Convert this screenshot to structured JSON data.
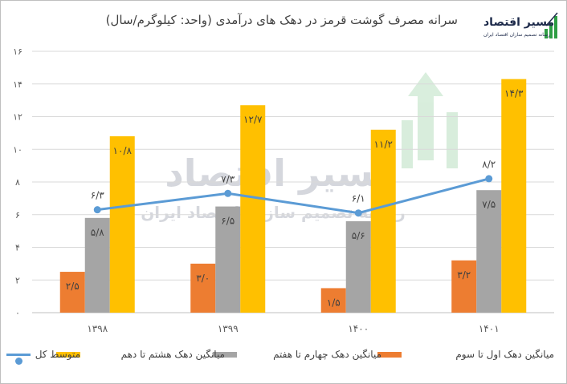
{
  "chart_data": {
    "type": "bar",
    "title": "سرانه مصرف گوشت قرمز در دهک های درآمدی (واحد: کیلوگرم/سال)",
    "categories": [
      "۱۳۹۸",
      "۱۳۹۹",
      "۱۴۰۰",
      "۱۴۰۱"
    ],
    "ylim": [
      0,
      16
    ],
    "yticks": [
      0,
      2,
      4,
      6,
      8,
      10,
      12,
      14,
      16
    ],
    "ytick_labels": [
      "۰",
      "۲",
      "۴",
      "۶",
      "۸",
      "۱۰",
      "۱۲",
      "۱۴",
      "۱۶"
    ],
    "grid": true,
    "legend_position": "bottom",
    "series": [
      {
        "name": "میانگین دهک اول تا سوم",
        "type": "bar",
        "color": "#ed7d31",
        "values": [
          2.5,
          3.0,
          1.5,
          3.2
        ],
        "labels": [
          "۲/۵",
          "۳/۰",
          "۱/۵",
          "۳/۲"
        ]
      },
      {
        "name": "میانگین دهک چهارم تا هفتم",
        "type": "bar",
        "color": "#a5a5a5",
        "values": [
          5.8,
          6.5,
          5.6,
          7.5
        ],
        "labels": [
          "۵/۸",
          "۶/۵",
          "۵/۶",
          "۷/۵"
        ]
      },
      {
        "name": "میانگین دهک هشتم تا دهم",
        "type": "bar",
        "color": "#ffc000",
        "values": [
          10.8,
          12.7,
          11.2,
          14.3
        ],
        "labels": [
          "۱۰/۸",
          "۱۲/۷",
          "۱۱/۲",
          "۱۴/۳"
        ]
      },
      {
        "name": "متوسط کل",
        "type": "line",
        "color": "#5b9bd5",
        "values": [
          6.3,
          7.3,
          6.1,
          8.2
        ],
        "labels": [
          "۶/۳",
          "۷/۳",
          "۶/۱",
          "۸/۲"
        ]
      }
    ]
  },
  "logo": {
    "name": "مسیر اقتصاد",
    "tagline": "رسانه تصمیم سازان اقتصاد ایران"
  },
  "watermark": {
    "text": "مسیر اقتصاد",
    "subtext": "رسانه تصمیم سازان اقتصاد ایران"
  }
}
